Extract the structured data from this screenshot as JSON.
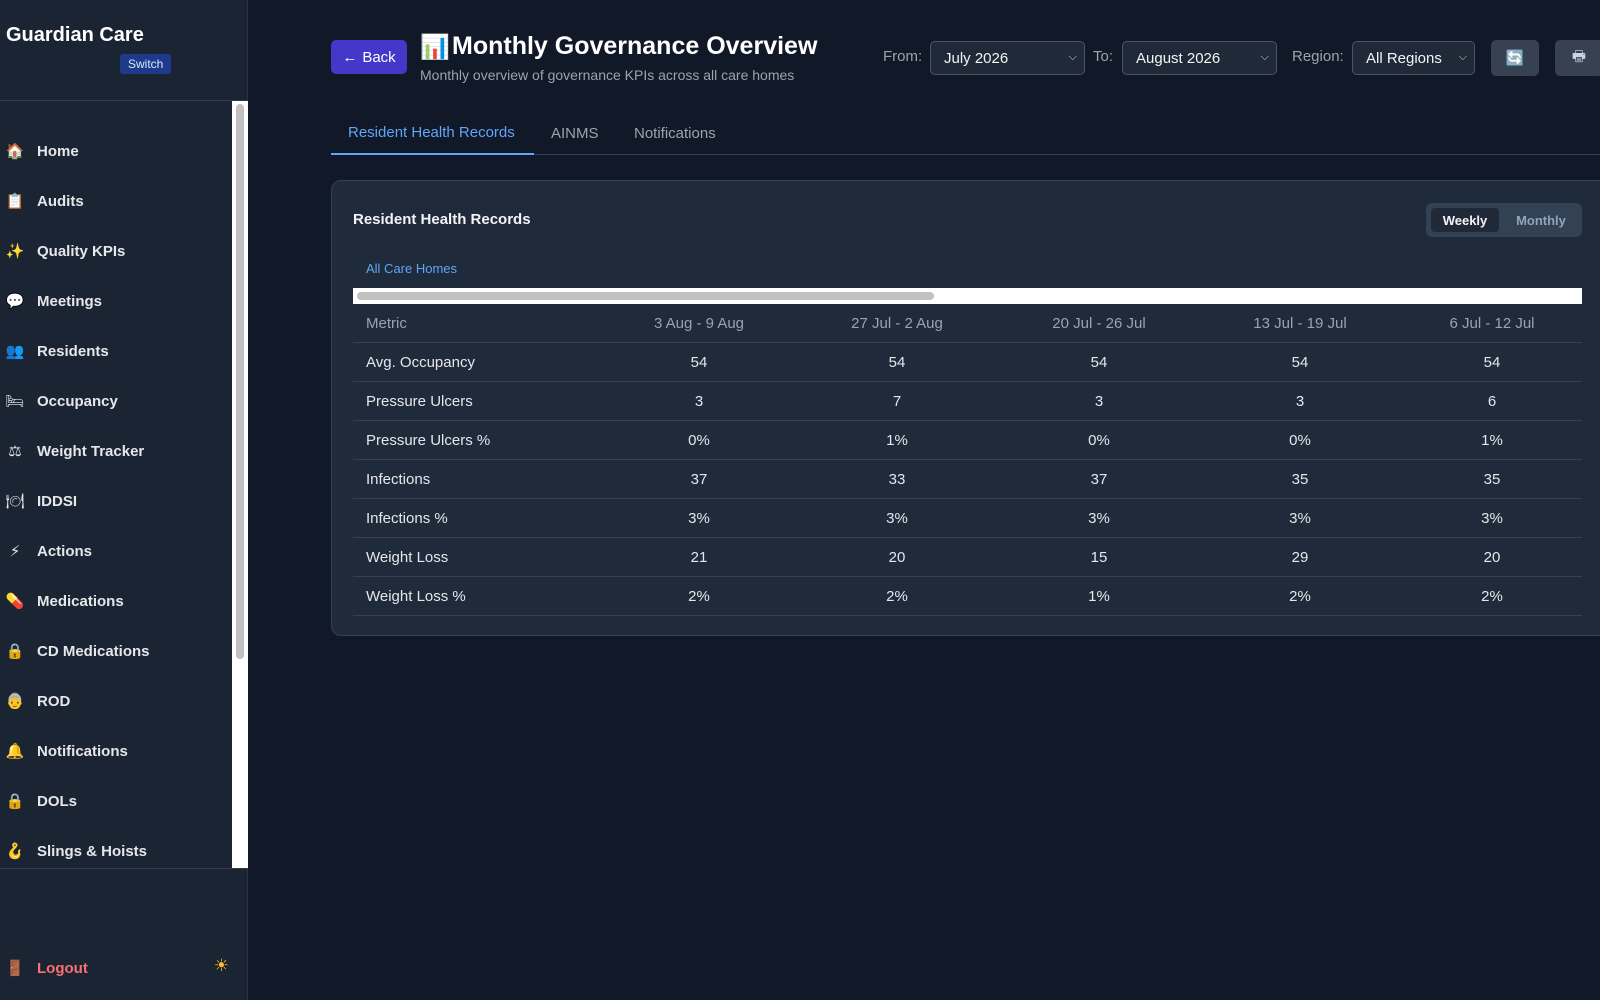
{
  "sidebar": {
    "brand": "Guardian Care",
    "switch_label": "Switch",
    "items": [
      {
        "icon": "🏠",
        "label": "Home"
      },
      {
        "icon": "📋",
        "label": "Audits"
      },
      {
        "icon": "✨",
        "label": "Quality KPIs"
      },
      {
        "icon": "💬",
        "label": "Meetings"
      },
      {
        "icon": "👥",
        "label": "Residents"
      },
      {
        "icon": "🛏",
        "label": "Occupancy"
      },
      {
        "icon": "⚖",
        "label": "Weight Tracker"
      },
      {
        "icon": "🍽",
        "label": "IDDSI"
      },
      {
        "icon": "⚡",
        "label": "Actions"
      },
      {
        "icon": "💊",
        "label": "Medications"
      },
      {
        "icon": "🔒",
        "label": "CD Medications"
      },
      {
        "icon": "👵",
        "label": "ROD"
      },
      {
        "icon": "🔔",
        "label": "Notifications"
      },
      {
        "icon": "🔒",
        "label": "DOLs"
      },
      {
        "icon": "🪝",
        "label": "Slings & Hoists"
      }
    ],
    "logout": {
      "icon": "🚪",
      "label": "Logout"
    },
    "theme_icon": "☀"
  },
  "header": {
    "back_label": "Back",
    "back_icon": "←",
    "title_icon": "📊",
    "title": "Monthly Governance Overview",
    "subtitle": "Monthly overview of governance KPIs across all care homes",
    "from_label": "From:",
    "from_value": "July 2026",
    "to_label": "To:",
    "to_value": "August 2026",
    "region_label": "Region:",
    "region_value": "All Regions",
    "refresh_icon": "🔄",
    "print_icon": "🖶"
  },
  "tabs": [
    {
      "label": "Resident Health Records",
      "active": true
    },
    {
      "label": "AINMS",
      "active": false
    },
    {
      "label": "Notifications",
      "active": false
    }
  ],
  "card": {
    "title": "Resident Health Records",
    "toggle_weekly": "Weekly",
    "toggle_monthly": "Monthly",
    "subtab": "All Care Homes",
    "columns": [
      "Metric",
      "3 Aug - 9 Aug",
      "27 Jul - 2 Aug",
      "20 Jul - 26 Jul",
      "13 Jul - 19 Jul",
      "6 Jul - 12 Jul"
    ],
    "rows": [
      [
        "Avg. Occupancy",
        "54",
        "54",
        "54",
        "54",
        "54"
      ],
      [
        "Pressure Ulcers",
        "3",
        "7",
        "3",
        "3",
        "6"
      ],
      [
        "Pressure Ulcers %",
        "0%",
        "1%",
        "0%",
        "0%",
        "1%"
      ],
      [
        "Infections",
        "37",
        "33",
        "37",
        "35",
        "35"
      ],
      [
        "Infections %",
        "3%",
        "3%",
        "3%",
        "3%",
        "3%"
      ],
      [
        "Weight Loss",
        "21",
        "20",
        "15",
        "29",
        "20"
      ],
      [
        "Weight Loss %",
        "2%",
        "2%",
        "1%",
        "2%",
        "2%"
      ]
    ]
  }
}
